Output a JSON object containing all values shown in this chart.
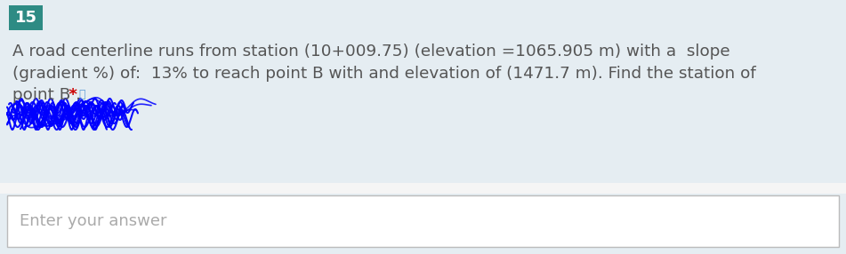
{
  "question_number": "15",
  "question_number_bg": "#2e8b84",
  "question_number_color": "#ffffff",
  "question_number_fontsize": 13,
  "body_bg": "#e5edf2",
  "body_text_color": "#555555",
  "body_fontsize": 13.2,
  "line1": "A road centerline runs from station (10+009.75) (elevation =1065.905 m) with a  slope",
  "line2": "(gradient %) of:  13% to reach point B with and elevation of (1471.7 m). Find the station of",
  "line3": "point B .",
  "asterisk": " *",
  "asterisk_color": "#cc0000",
  "speaker_icon_color": "#5b9bd5",
  "input_bg": "#ffffff",
  "input_border": "#bbbbbb",
  "input_text": "Enter your answer",
  "input_text_color": "#aaaaaa",
  "input_fontsize": 13,
  "signature_color": "#0000ff",
  "white_gap_color": "#f5f5f5"
}
